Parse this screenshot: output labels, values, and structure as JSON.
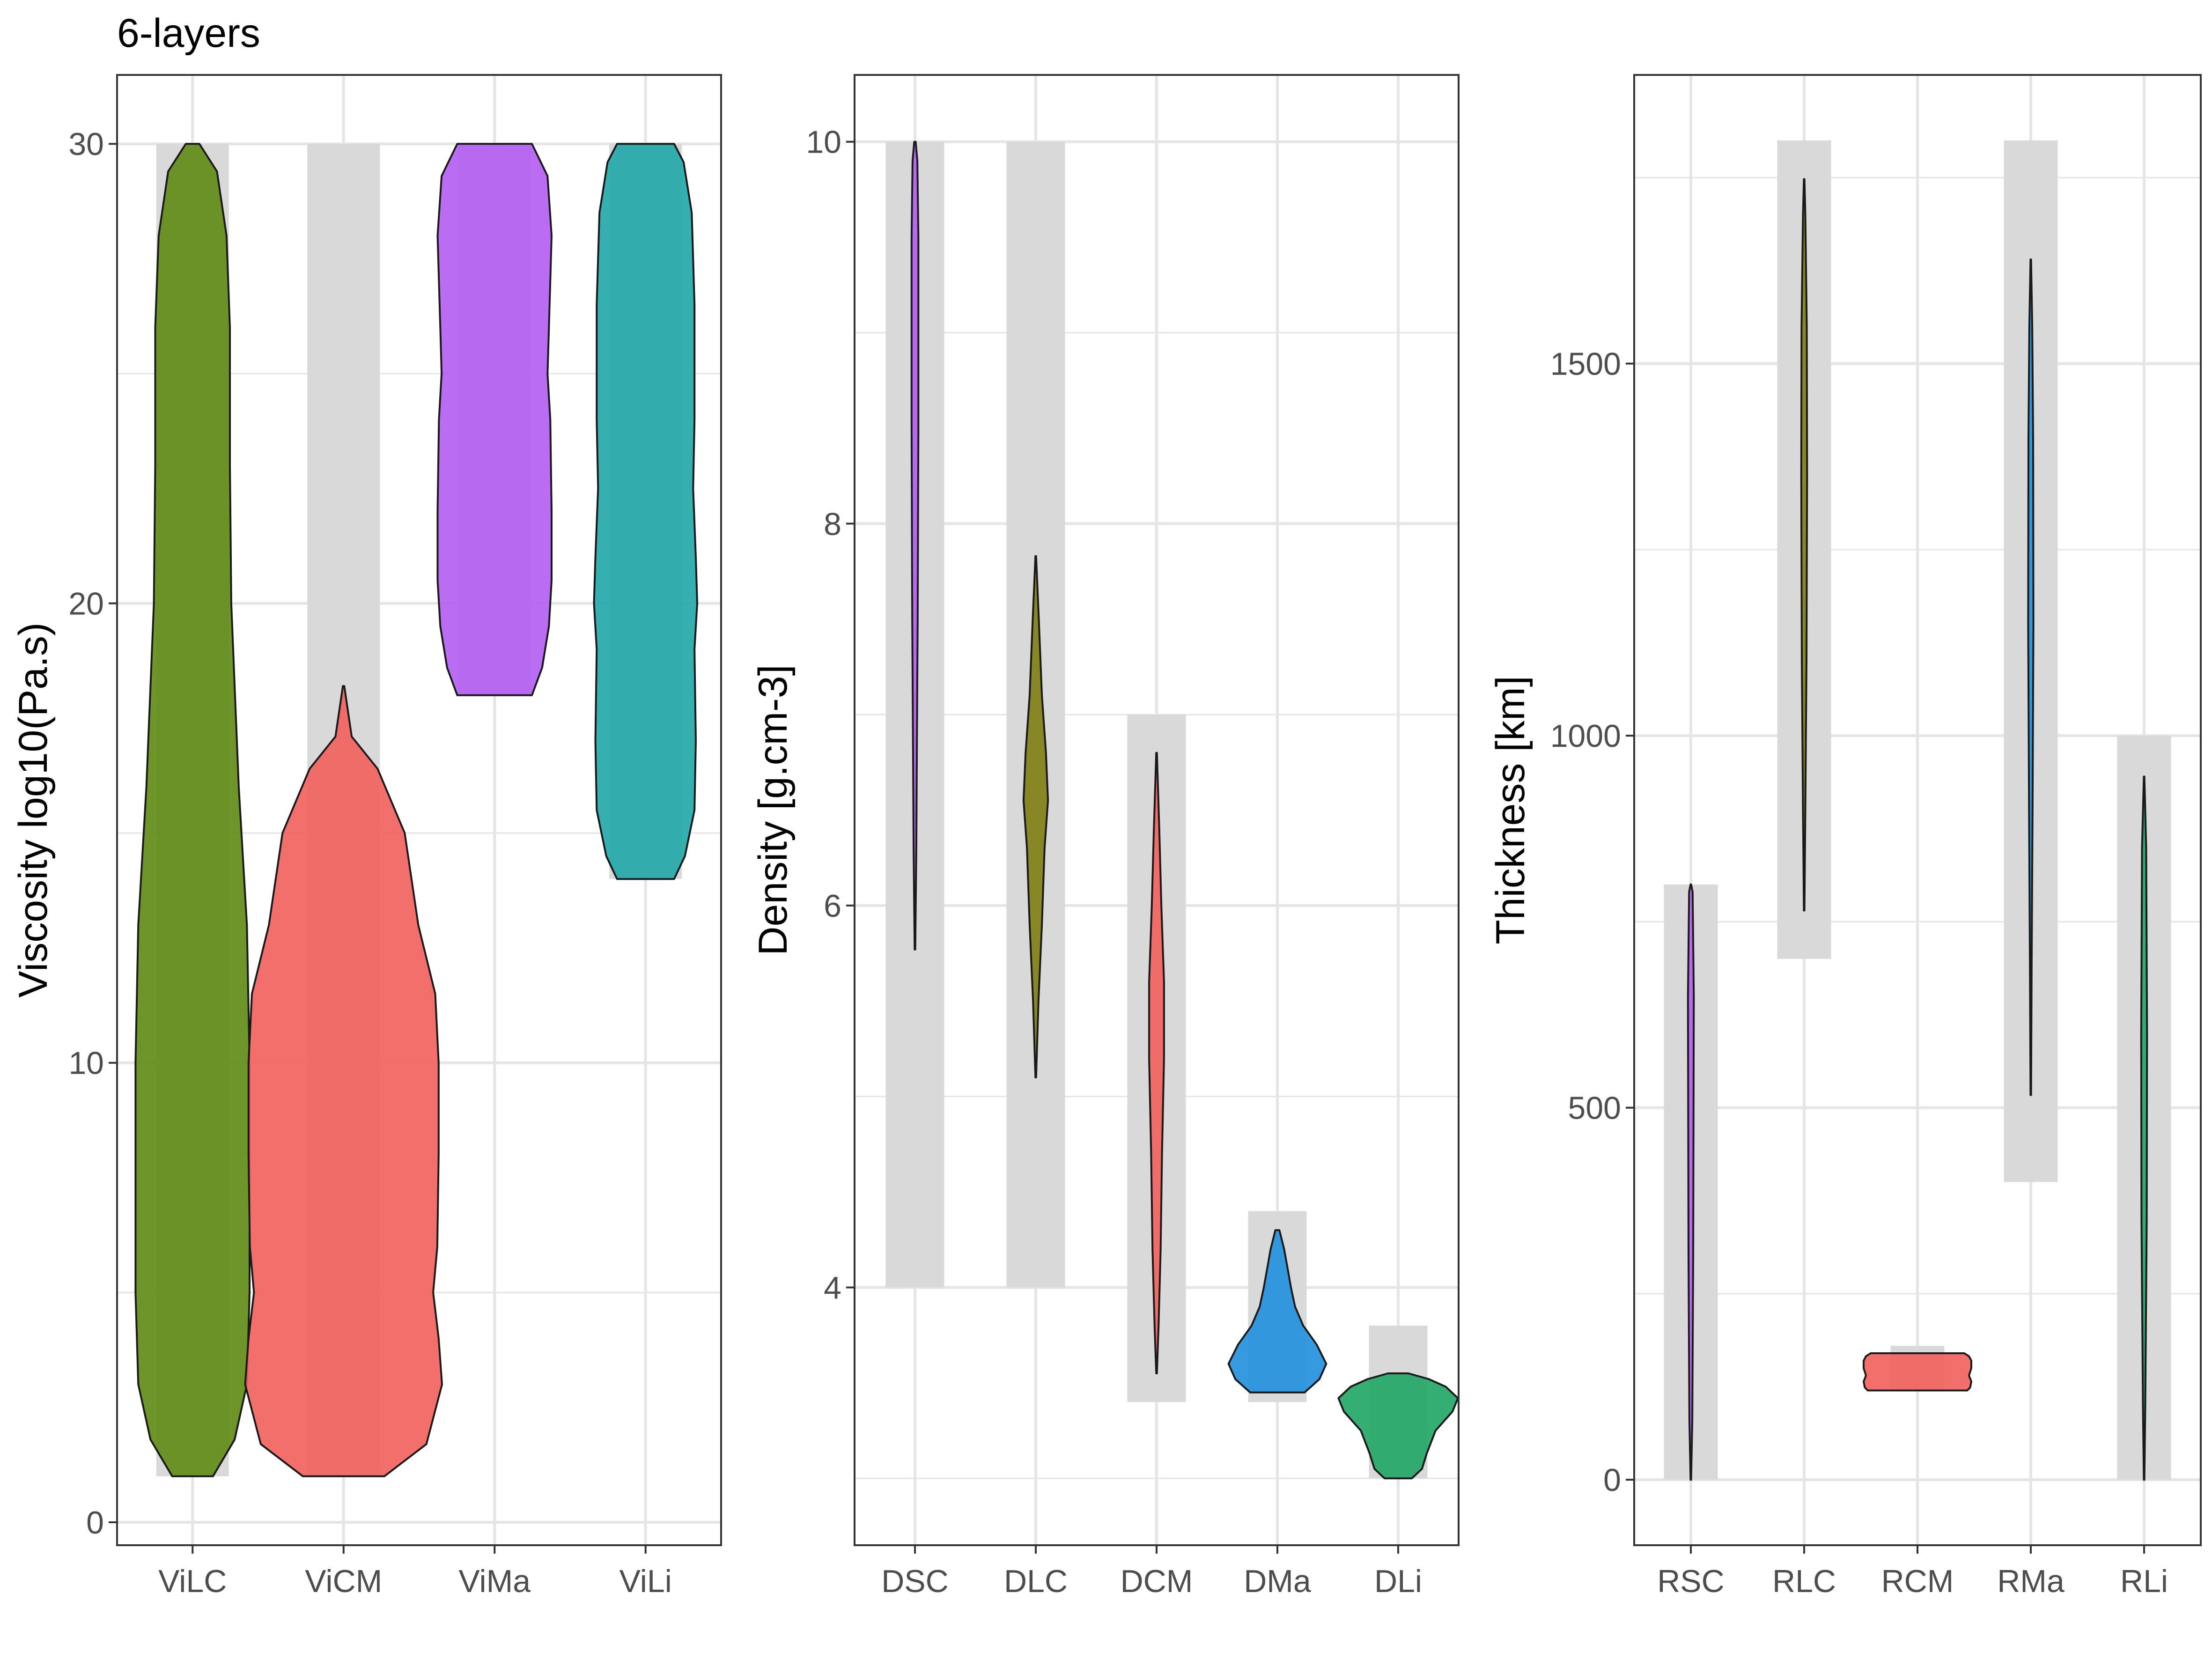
{
  "figure_title": "6-layers",
  "colors": {
    "purple": "#b25cf2",
    "olive": "#7d7d12",
    "green_dark": "#5e8a12",
    "red": "#f25f5c",
    "blue": "#1f8fdc",
    "green": "#1fa565",
    "teal": "#1fa6a6",
    "range_band": "#d9d9d9",
    "grid": "#e5e5e5"
  },
  "chart_data": [
    {
      "type": "violin",
      "ylabel": "Viscosity log10(Pa.s)",
      "xlabel": "",
      "ylim": [
        -0.5,
        31.5
      ],
      "yticks": [
        0,
        10,
        20,
        30
      ],
      "ytick_labels": [
        "0",
        "10",
        "20",
        "30"
      ],
      "categories": [
        "ViLC",
        "ViCM",
        "ViMa",
        "ViLi"
      ],
      "grid": true,
      "series": [
        {
          "name": "ViLC",
          "color": "#5e8a12",
          "range": [
            1,
            30
          ],
          "min": 1,
          "max": 30,
          "profile": [
            [
              1,
              0.3
            ],
            [
              1.8,
              0.62
            ],
            [
              3,
              0.8
            ],
            [
              5,
              0.84
            ],
            [
              10,
              0.84
            ],
            [
              13,
              0.8
            ],
            [
              16,
              0.68
            ],
            [
              20,
              0.57
            ],
            [
              23,
              0.55
            ],
            [
              26,
              0.55
            ],
            [
              28,
              0.5
            ],
            [
              29.4,
              0.36
            ],
            [
              30,
              0.1
            ]
          ]
        },
        {
          "name": "ViCM",
          "color": "#f25f5c",
          "range": [
            1,
            30
          ],
          "min": 1,
          "max": 18.2,
          "profile": [
            [
              1,
              0.6
            ],
            [
              1.7,
              1.22
            ],
            [
              3,
              1.45
            ],
            [
              4,
              1.4
            ],
            [
              5,
              1.32
            ],
            [
              6,
              1.38
            ],
            [
              8,
              1.4
            ],
            [
              10,
              1.4
            ],
            [
              11.5,
              1.35
            ],
            [
              13,
              1.1
            ],
            [
              15,
              0.9
            ],
            [
              16.4,
              0.5
            ],
            [
              17.1,
              0.12
            ],
            [
              18.2,
              0.01
            ]
          ]
        },
        {
          "name": "ViMa",
          "color": "#b25cf2",
          "range": [
            18,
            30
          ],
          "min": 18,
          "max": 30,
          "profile": [
            [
              18,
              0.55
            ],
            [
              18.6,
              0.7
            ],
            [
              19.5,
              0.8
            ],
            [
              20.5,
              0.84
            ],
            [
              22,
              0.84
            ],
            [
              24,
              0.82
            ],
            [
              25,
              0.78
            ],
            [
              26,
              0.8
            ],
            [
              28,
              0.84
            ],
            [
              29.3,
              0.78
            ],
            [
              30,
              0.55
            ]
          ]
        },
        {
          "name": "ViLi",
          "color": "#1fa6a6",
          "range": [
            14,
            30
          ],
          "min": 14,
          "max": 30,
          "profile": [
            [
              14,
              0.42
            ],
            [
              14.5,
              0.58
            ],
            [
              15.5,
              0.72
            ],
            [
              17,
              0.74
            ],
            [
              19,
              0.72
            ],
            [
              20,
              0.76
            ],
            [
              21,
              0.74
            ],
            [
              22.5,
              0.7
            ],
            [
              24,
              0.72
            ],
            [
              26.5,
              0.72
            ],
            [
              28.5,
              0.68
            ],
            [
              29.6,
              0.56
            ],
            [
              30,
              0.42
            ]
          ]
        }
      ]
    },
    {
      "type": "violin",
      "ylabel": "Density [g.cm-3]",
      "xlabel": "",
      "ylim": [
        2.65,
        10.35
      ],
      "yticks": [
        4,
        6,
        8,
        10
      ],
      "ytick_labels": [
        "4",
        "6",
        "8",
        "10"
      ],
      "categories": [
        "DSC",
        "DLC",
        "DCM",
        "DMa",
        "DLi"
      ],
      "grid": true,
      "series": [
        {
          "name": "DSC",
          "color": "#b25cf2",
          "range": [
            4,
            10
          ],
          "min": 5.77,
          "max": 10,
          "profile": [
            [
              5.77,
              0.005
            ],
            [
              6.3,
              0.02
            ],
            [
              6.9,
              0.03
            ],
            [
              7.5,
              0.04
            ],
            [
              8.5,
              0.05
            ],
            [
              9.5,
              0.05
            ],
            [
              9.9,
              0.035
            ],
            [
              10,
              0.01
            ]
          ]
        },
        {
          "name": "DLC",
          "color": "#7d7d12",
          "range": [
            4,
            10
          ],
          "min": 5.1,
          "max": 7.83,
          "profile": [
            [
              5.1,
              0.005
            ],
            [
              5.5,
              0.04
            ],
            [
              5.9,
              0.09
            ],
            [
              6.3,
              0.13
            ],
            [
              6.55,
              0.18
            ],
            [
              6.8,
              0.15
            ],
            [
              7.1,
              0.09
            ],
            [
              7.5,
              0.045
            ],
            [
              7.83,
              0.005
            ]
          ]
        },
        {
          "name": "DCM",
          "color": "#f25f5c",
          "range": [
            3.4,
            7
          ],
          "min": 3.55,
          "max": 6.8,
          "profile": [
            [
              3.55,
              0.005
            ],
            [
              3.8,
              0.03
            ],
            [
              4.2,
              0.06
            ],
            [
              4.7,
              0.08
            ],
            [
              5.2,
              0.11
            ],
            [
              5.6,
              0.11
            ],
            [
              6.0,
              0.07
            ],
            [
              6.4,
              0.04
            ],
            [
              6.8,
              0.005
            ]
          ]
        },
        {
          "name": "DMa",
          "color": "#1f8fdc",
          "range": [
            3.4,
            4.4
          ],
          "min": 3.45,
          "max": 4.3,
          "profile": [
            [
              3.45,
              0.4
            ],
            [
              3.52,
              0.62
            ],
            [
              3.6,
              0.72
            ],
            [
              3.7,
              0.58
            ],
            [
              3.8,
              0.38
            ],
            [
              3.9,
              0.26
            ],
            [
              4.0,
              0.2
            ],
            [
              4.1,
              0.15
            ],
            [
              4.2,
              0.1
            ],
            [
              4.3,
              0.03
            ]
          ]
        },
        {
          "name": "DLi",
          "color": "#1fa565",
          "range": [
            3,
            3.8
          ],
          "min": 3.0,
          "max": 3.55,
          "profile": [
            [
              3.0,
              0.2
            ],
            [
              3.05,
              0.35
            ],
            [
              3.13,
              0.42
            ],
            [
              3.25,
              0.55
            ],
            [
              3.35,
              0.8
            ],
            [
              3.42,
              0.88
            ],
            [
              3.48,
              0.7
            ],
            [
              3.52,
              0.45
            ],
            [
              3.55,
              0.15
            ]
          ]
        }
      ]
    },
    {
      "type": "violin",
      "ylabel": "Thickness [km]",
      "xlabel": "",
      "ylim": [
        -88,
        1888
      ],
      "yticks": [
        0,
        500,
        1000,
        1500
      ],
      "ytick_labels": [
        "0",
        "500",
        "1000",
        "1500"
      ],
      "categories": [
        "RSC",
        "RLC",
        "RCM",
        "RMa",
        "RLi"
      ],
      "grid": true,
      "series": [
        {
          "name": "RSC",
          "color": "#b25cf2",
          "range": [
            0,
            800
          ],
          "min": 0,
          "max": 800,
          "profile": [
            [
              0,
              0.005
            ],
            [
              80,
              0.025
            ],
            [
              300,
              0.04
            ],
            [
              650,
              0.05
            ],
            [
              790,
              0.03
            ],
            [
              800,
              0.005
            ]
          ]
        },
        {
          "name": "RLC",
          "color": "#7d7d12",
          "range": [
            700,
            1800
          ],
          "min": 765,
          "max": 1748,
          "profile": [
            [
              765,
              0.005
            ],
            [
              900,
              0.02
            ],
            [
              1100,
              0.04
            ],
            [
              1350,
              0.05
            ],
            [
              1550,
              0.045
            ],
            [
              1700,
              0.02
            ],
            [
              1748,
              0.005
            ]
          ]
        },
        {
          "name": "RCM",
          "color": "#f25f5c",
          "range": [
            120,
            180
          ],
          "min": 120,
          "max": 170,
          "profile": [
            [
              120,
              0.85
            ],
            [
              124,
              0.9
            ],
            [
              132,
              0.92
            ],
            [
              140,
              0.88
            ],
            [
              150,
              0.92
            ],
            [
              160,
              0.92
            ],
            [
              166,
              0.88
            ],
            [
              170,
              0.8
            ]
          ]
        },
        {
          "name": "RMa",
          "color": "#1f8fdc",
          "range": [
            400,
            1800
          ],
          "min": 517,
          "max": 1640,
          "profile": [
            [
              517,
              0.005
            ],
            [
              700,
              0.015
            ],
            [
              900,
              0.03
            ],
            [
              1150,
              0.045
            ],
            [
              1400,
              0.04
            ],
            [
              1550,
              0.025
            ],
            [
              1640,
              0.005
            ]
          ]
        },
        {
          "name": "RLi",
          "color": "#1fa565",
          "range": [
            0,
            1000
          ],
          "min": 0,
          "max": 945,
          "profile": [
            [
              0,
              0.005
            ],
            [
              100,
              0.02
            ],
            [
              350,
              0.045
            ],
            [
              600,
              0.05
            ],
            [
              850,
              0.035
            ],
            [
              945,
              0.005
            ]
          ]
        }
      ]
    }
  ]
}
